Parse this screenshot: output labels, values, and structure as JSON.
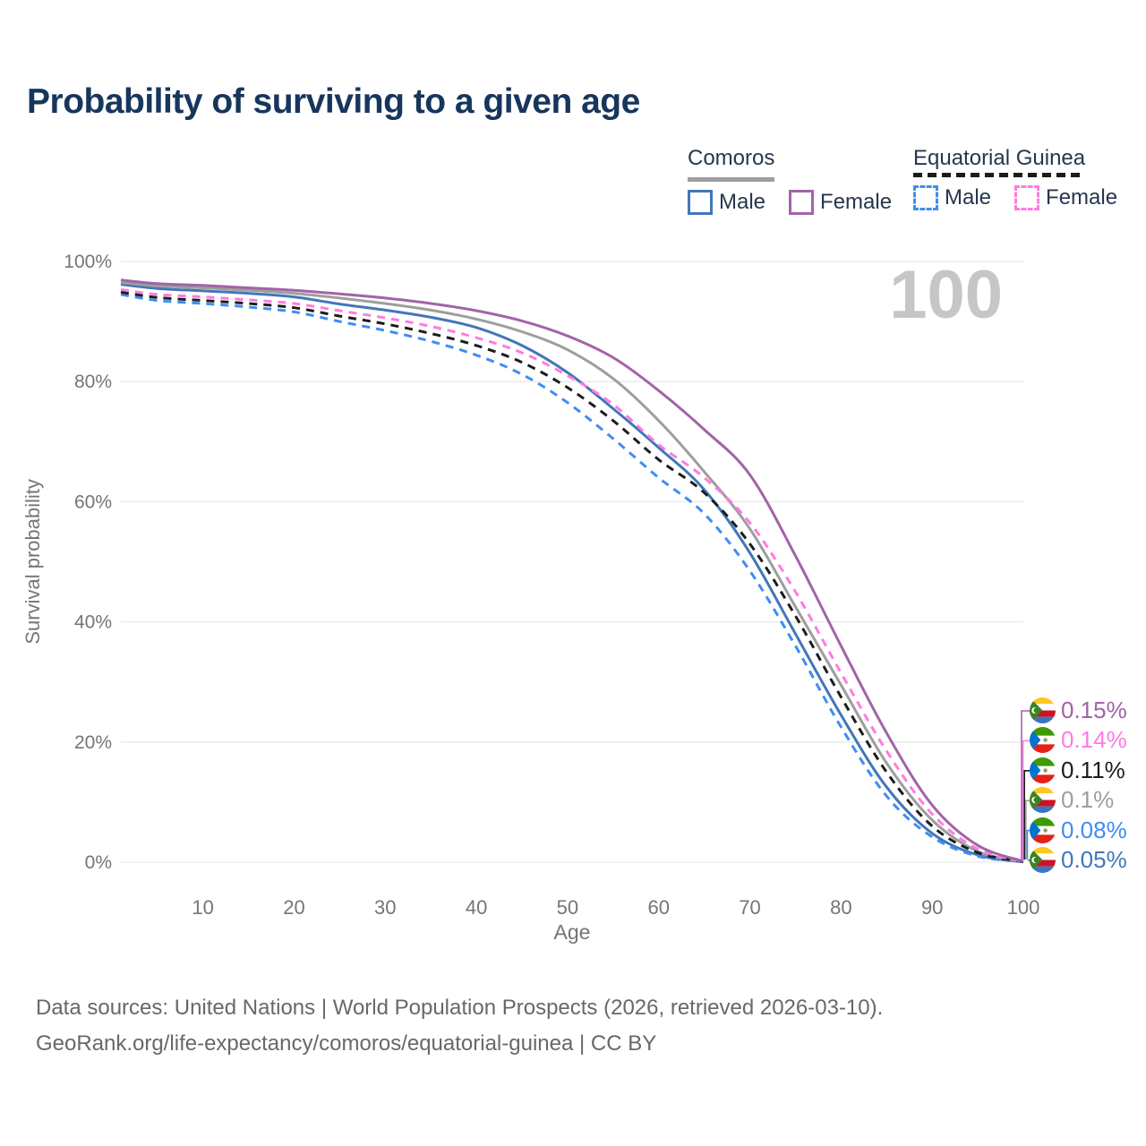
{
  "title": "Probability of surviving to a given age",
  "watermark": "100",
  "legend": {
    "comoros": {
      "title": "Comoros",
      "male": "Male",
      "female": "Female"
    },
    "equatorial_guinea": {
      "title": "Equatorial Guinea",
      "male": "Male",
      "female": "Female"
    }
  },
  "footer": {
    "line1": "Data sources: United Nations | World Population Prospects (2026, retrieved 2026-03-10).",
    "line2": "GeoRank.org/life-expectancy/comoros/equatorial-guinea | CC BY"
  },
  "colors": {
    "title_text": "#17365c",
    "legend_text": "#26374c",
    "axis_text": "#757575",
    "gridline": "#e9e9e9",
    "watermark": "#c6c6c6",
    "footer_text": "#686868",
    "comoros_underline": "#9e9e9e",
    "equatorial_guinea_underline": "#1c1c1c"
  },
  "chart_data": {
    "type": "line",
    "title": "Probability of surviving to a given age",
    "xlabel": "Age",
    "ylabel": "Survival probability",
    "xlim": [
      1,
      100
    ],
    "ylim": [
      0,
      100
    ],
    "grid": "horizontal",
    "legend_position": "top-right",
    "x_ticks": [
      {
        "v": 10,
        "t": "10"
      },
      {
        "v": 20,
        "t": "20"
      },
      {
        "v": 30,
        "t": "30"
      },
      {
        "v": 40,
        "t": "40"
      },
      {
        "v": 50,
        "t": "50"
      },
      {
        "v": 60,
        "t": "60"
      },
      {
        "v": 70,
        "t": "70"
      },
      {
        "v": 80,
        "t": "80"
      },
      {
        "v": 90,
        "t": "90"
      },
      {
        "v": 100,
        "t": "100"
      }
    ],
    "y_ticks": [
      {
        "v": 0,
        "t": "0%"
      },
      {
        "v": 20,
        "t": "20%"
      },
      {
        "v": 40,
        "t": "40%"
      },
      {
        "v": 60,
        "t": "60%"
      },
      {
        "v": 80,
        "t": "80%"
      },
      {
        "v": 100,
        "t": "100%"
      }
    ],
    "ages": [
      1,
      5,
      10,
      15,
      20,
      25,
      30,
      35,
      40,
      45,
      50,
      55,
      60,
      65,
      70,
      75,
      80,
      85,
      90,
      95,
      100
    ],
    "series": [
      {
        "id": "comoros-female",
        "country": "Comoros",
        "sex": "Female",
        "color": "#a263a8",
        "dash": false,
        "flag": "comoros",
        "end_label": "0.15%",
        "values": [
          96.9,
          96.3,
          96.0,
          95.6,
          95.2,
          94.6,
          93.9,
          93.0,
          91.8,
          90.1,
          87.6,
          84.0,
          78.5,
          72.0,
          64.5,
          51.0,
          36.0,
          21.5,
          9.5,
          2.8,
          0.15
        ]
      },
      {
        "id": "equatorial-guinea-female",
        "country": "Equatorial Guinea",
        "sex": "Female",
        "color": "#ff7be0",
        "dash": true,
        "flag": "equatorial-guinea",
        "end_label": "0.14%",
        "values": [
          95.3,
          94.5,
          94.1,
          93.6,
          93.0,
          91.8,
          90.6,
          89.2,
          87.3,
          84.8,
          81.0,
          76.2,
          69.5,
          64.0,
          56.5,
          45.0,
          31.5,
          18.5,
          8.0,
          2.2,
          0.14
        ]
      },
      {
        "id": "equatorial-guinea-all",
        "country": "Equatorial Guinea",
        "sex": "Both sexes",
        "color": "#1c1c1c",
        "dash": true,
        "flag": "equatorial-guinea",
        "end_label": "0.11%",
        "values": [
          94.9,
          94.0,
          93.5,
          93.0,
          92.3,
          90.9,
          89.6,
          88.0,
          86.0,
          83.2,
          79.0,
          73.5,
          67.0,
          61.5,
          53.0,
          41.0,
          27.5,
          15.0,
          6.0,
          1.6,
          0.11
        ]
      },
      {
        "id": "comoros-all",
        "country": "Comoros",
        "sex": "Both sexes",
        "color": "#9e9e9e",
        "dash": false,
        "flag": "comoros",
        "end_label": "0.1%",
        "values": [
          96.5,
          95.9,
          95.6,
          95.2,
          94.7,
          93.9,
          93.0,
          91.9,
          90.4,
          88.3,
          85.3,
          80.5,
          73.5,
          65.0,
          55.5,
          42.5,
          29.5,
          16.5,
          7.0,
          1.8,
          0.1
        ]
      },
      {
        "id": "equatorial-guinea-male",
        "country": "Equatorial Guinea",
        "sex": "Male",
        "color": "#3f8df2",
        "dash": true,
        "flag": "equatorial-guinea",
        "end_label": "0.08%",
        "values": [
          94.5,
          93.5,
          93.0,
          92.4,
          91.6,
          90.0,
          88.5,
          86.7,
          84.4,
          81.2,
          76.5,
          70.5,
          64.0,
          58.0,
          48.5,
          36.0,
          22.5,
          11.0,
          4.2,
          1.0,
          0.08
        ]
      },
      {
        "id": "comoros-male",
        "country": "Comoros",
        "sex": "Male",
        "color": "#4276b9",
        "dash": false,
        "flag": "comoros",
        "end_label": "0.05%",
        "values": [
          96.2,
          95.5,
          95.1,
          94.7,
          94.1,
          92.9,
          91.9,
          90.7,
          89.0,
          86.0,
          81.5,
          75.5,
          69.0,
          62.0,
          51.5,
          38.0,
          24.5,
          12.5,
          4.8,
          1.2,
          0.05
        ]
      }
    ]
  }
}
